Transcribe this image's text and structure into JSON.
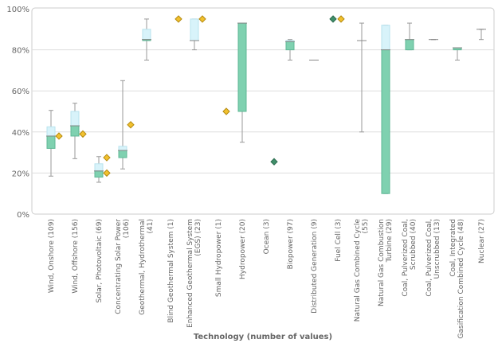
{
  "chart_data": {
    "type": "box",
    "xlabel": "Technology (number of values)",
    "ylabel": "",
    "ylim": [
      0,
      100
    ],
    "yticks": [
      "0%",
      "20%",
      "40%",
      "60%",
      "80%",
      "100%"
    ],
    "grid": true,
    "colors": {
      "lower_box": "#7fd1b0",
      "upper_box": "#d8f3fa",
      "diamond_yellow": "#f2c12e",
      "diamond_green": "#3f8f6a",
      "whisker": "#999999"
    },
    "categories": [
      "Wind, Onshore (109)",
      "Wind, Offshore (156)",
      "Solar, Photovoltaic (69)",
      "Concentrating Solar Power (106)",
      "Geothermal, Hydrothermal (41)",
      "Blind Geothermal System (1)",
      "Enhanced Geothermal System (EGS) (23)",
      "Small Hydropower (1)",
      "Hydropower (20)",
      "Ocean (3)",
      "Biopower (97)",
      "Distributed Generation (9)",
      "Fuel Cell (3)",
      "Natural Gas Combined Cycle (55)",
      "Natural Gas Combustion Turbine (29)",
      "Coal, Pulverized Coal, Scrubbed (40)",
      "Coal, Pulverized Coal, Unscrubbed (13)",
      "Coal, Integrated Gasification Combined Cycle (48)",
      "Nuclear (27)"
    ],
    "boxes": [
      {
        "min": 18.5,
        "q1": 32,
        "median": 38,
        "q3": 42.5,
        "max": 50.5,
        "diamonds": [
          {
            "v": 38,
            "c": "yellow"
          }
        ]
      },
      {
        "min": 27,
        "q1": 38,
        "median": 43,
        "q3": 50,
        "max": 54,
        "diamonds": [
          {
            "v": 39,
            "c": "yellow"
          }
        ]
      },
      {
        "min": 15.5,
        "q1": 18,
        "median": 21,
        "q3": 24.5,
        "max": 28,
        "diamonds": [
          {
            "v": 27.5,
            "c": "yellow"
          },
          {
            "v": 20,
            "c": "yellow"
          }
        ]
      },
      {
        "min": 22,
        "q1": 27.5,
        "median": 31,
        "q3": 33,
        "max": 65,
        "diamonds": [
          {
            "v": 43.5,
            "c": "yellow"
          }
        ]
      },
      {
        "min": 75,
        "q1": 84.5,
        "median": 85,
        "q3": 90,
        "max": 95,
        "diamonds": []
      },
      {
        "diamonds": [
          {
            "v": 95,
            "c": "yellow"
          }
        ]
      },
      {
        "min": 80,
        "q1": 84.5,
        "median": 84.5,
        "q3": 95,
        "max": 95,
        "diamonds": [
          {
            "v": 95,
            "c": "yellow"
          }
        ]
      },
      {
        "diamonds": [
          {
            "v": 50,
            "c": "yellow"
          }
        ]
      },
      {
        "min": 35,
        "q1": 50,
        "median": 93,
        "q3": 93,
        "max": 93,
        "diamonds": []
      },
      {
        "diamonds": [
          {
            "v": 25.5,
            "c": "green"
          }
        ]
      },
      {
        "min": 75,
        "q1": 80,
        "median": 84,
        "q3": 84.5,
        "max": 85,
        "diamonds": []
      },
      {
        "min": 75,
        "q1": 75,
        "median": 75,
        "q3": 75,
        "max": 75,
        "diamonds": []
      },
      {
        "diamonds": [
          {
            "v": 95,
            "c": "green",
            "dx": -6
          },
          {
            "v": 95,
            "c": "yellow",
            "dx": 4
          }
        ]
      },
      {
        "min": 40,
        "q1": 84.5,
        "median": 84.5,
        "q3": 84.5,
        "max": 93,
        "diamonds": []
      },
      {
        "min": 10,
        "q1": 10,
        "median": 80,
        "q3": 92,
        "max": 92,
        "diamonds": []
      },
      {
        "min": 80,
        "q1": 80,
        "median": 85,
        "q3": 85,
        "max": 93,
        "diamonds": []
      },
      {
        "min": 85,
        "q1": 85,
        "median": 85,
        "q3": 85,
        "max": 85,
        "diamonds": []
      },
      {
        "min": 75,
        "q1": 80,
        "median": 81,
        "q3": 81,
        "max": 81,
        "diamonds": []
      },
      {
        "min": 85,
        "q1": 90,
        "median": 90,
        "q3": 90,
        "max": 90,
        "diamonds": []
      }
    ]
  }
}
